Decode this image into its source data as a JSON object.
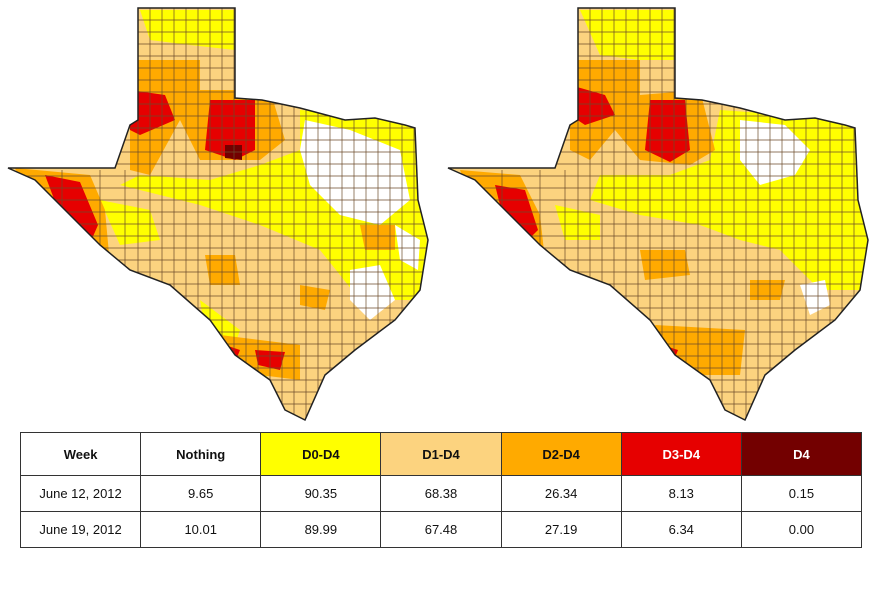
{
  "table": {
    "headers": [
      {
        "label": "Week",
        "color": "#ffffff",
        "text_color": "#111111"
      },
      {
        "label": "Nothing",
        "color": "#ffffff",
        "text_color": "#111111"
      },
      {
        "label": "D0-D4",
        "color": "#ffff00",
        "text_color": "#111111"
      },
      {
        "label": "D1-D4",
        "color": "#fcd37f",
        "text_color": "#111111"
      },
      {
        "label": "D2-D4",
        "color": "#ffaa00",
        "text_color": "#111111"
      },
      {
        "label": "D3-D4",
        "color": "#e60000",
        "text_color": "#ffffff"
      },
      {
        "label": "D4",
        "color": "#730000",
        "text_color": "#ffffff"
      }
    ],
    "rows": [
      {
        "week": "June 12, 2012",
        "values": [
          "9.65",
          "90.35",
          "68.38",
          "26.34",
          "8.13",
          "0.15"
        ]
      },
      {
        "week": "June 19, 2012",
        "values": [
          "10.01",
          "89.99",
          "67.48",
          "27.19",
          "6.34",
          "0.00"
        ]
      }
    ]
  },
  "colors": {
    "none": "#ffffff",
    "d0": "#ffff00",
    "d1": "#fcd37f",
    "d2": "#ffaa00",
    "d3": "#e60000",
    "d4": "#730000",
    "county_lines": "#6b4a2a"
  },
  "maps": [
    {
      "name": "texas-drought-map-june-12-2012"
    },
    {
      "name": "texas-drought-map-june-19-2012"
    }
  ]
}
